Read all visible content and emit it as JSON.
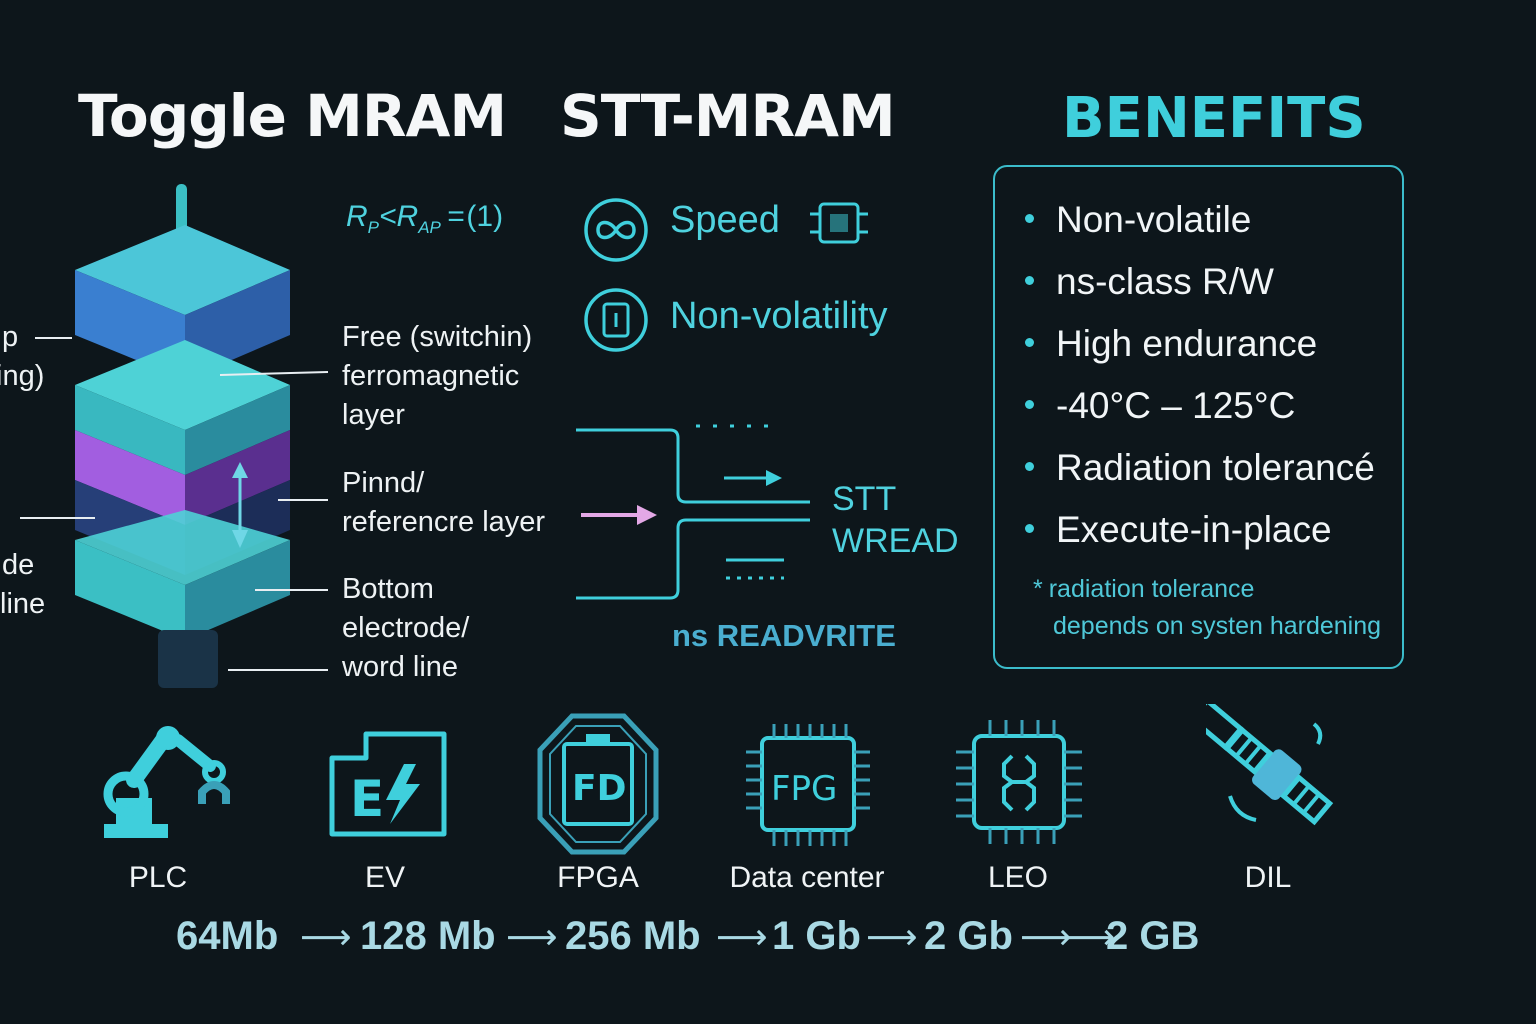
{
  "titles": {
    "toggle": "Toggle MRAM",
    "stt": "STT-MRAM",
    "benefits": "BENEFITS"
  },
  "formula": {
    "text": "R",
    "sub_p": "P",
    "lt": "<R",
    "sub_ap": "AP",
    "tail": "=",
    "paren": "(1)"
  },
  "stack_labels": {
    "left_cut_1": "ıp",
    "left_cut_2": "ing)",
    "left_cut_3": "ıde",
    "left_cut_4": "line",
    "free_1": "Free (switchin)",
    "free_2": "ferromagnetic",
    "free_3": "layer",
    "pinned_1": "Pinnd/",
    "pinned_2": "referencre layer",
    "bottom_1": "Bottom",
    "bottom_2": "electrode/",
    "bottom_3": "word line"
  },
  "features": {
    "speed": "Speed",
    "nonvol": "Non-volatility"
  },
  "stt_diagram": {
    "label_1": "STT",
    "label_2": "WREAD",
    "caption": "ns READVRITE"
  },
  "benefits": {
    "items": [
      "Non-volatile",
      "ns-class R/W",
      "High endurance",
      "-40°C – 125°C",
      "Radiation tolerancé",
      "Execute-in-place"
    ],
    "note_star": "*",
    "note_1": "radiation tolerance",
    "note_2": "depends on systen hardening"
  },
  "apps": [
    {
      "label": "PLC",
      "icon": "robot-arm-icon"
    },
    {
      "label": "EV",
      "icon": "ev-charging-icon"
    },
    {
      "label": "FPGA",
      "icon": "fpga-chip-icon",
      "inner": "FD"
    },
    {
      "label": "Data center",
      "icon": "fpg-chip-icon",
      "inner": "FPG"
    },
    {
      "label": "LEO",
      "icon": "processor-chip-icon"
    },
    {
      "label": "DIL",
      "icon": "satellite-icon"
    }
  ],
  "densities": [
    "64Mb",
    "128 Mb",
    "256 Mb",
    "1 Gb",
    "2 Gb",
    "2 GB"
  ],
  "colors": {
    "background": "#0d161b",
    "accent": "#3fcfdc",
    "layer_blue": "#3a8fd6",
    "layer_teal": "#3bbfc4",
    "layer_purple": "#9b55d6",
    "layer_navy": "#1f3a6b"
  }
}
